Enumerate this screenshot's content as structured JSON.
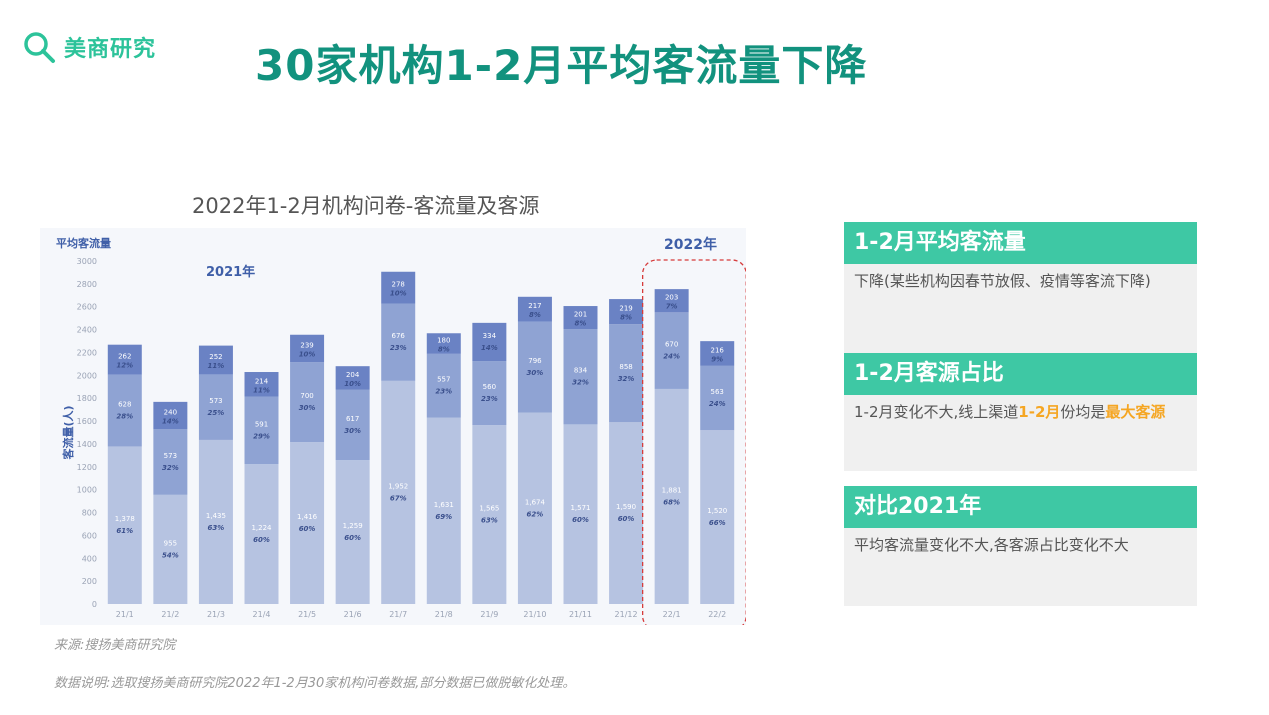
{
  "logo": {
    "text": "美商研究",
    "icon": "search-icon"
  },
  "page_title": "30家机构1-2月平均客流量下降",
  "chart_title": "2022年1-2月机构问卷-客流量及客源",
  "chart_data": {
    "type": "bar",
    "stacked": true,
    "inner_title": "平均客流量",
    "ylabel": "客流量(人)",
    "ylim": [
      0,
      3000
    ],
    "yticks": [
      0,
      200,
      400,
      600,
      800,
      1000,
      1200,
      1400,
      1600,
      1800,
      2000,
      2200,
      2400,
      2600,
      2800,
      3000
    ],
    "categories": [
      "21/1",
      "21/2",
      "21/3",
      "21/4",
      "21/5",
      "21/6",
      "21/7",
      "21/8",
      "21/9",
      "21/10",
      "21/11",
      "21/12",
      "22/1",
      "22/2"
    ],
    "series": [
      {
        "color": "#b6c3e1",
        "values": [
          1378,
          955,
          1435,
          1224,
          1416,
          1259,
          1952,
          1631,
          1565,
          1674,
          1571,
          1590,
          1881,
          1520
        ],
        "labels": [
          "1,378",
          "955",
          "1,435",
          "1,224",
          "1,416",
          "1,259",
          "1,952",
          "1,631",
          "1,565",
          "1,674",
          "1,571",
          "1,590",
          "1,881",
          "1,520"
        ],
        "pct": [
          "61%",
          "54%",
          "63%",
          "60%",
          "60%",
          "60%",
          "67%",
          "69%",
          "63%",
          "62%",
          "60%",
          "60%",
          "68%",
          "66%"
        ]
      },
      {
        "color": "#8fa3d3",
        "values": [
          628,
          573,
          573,
          591,
          700,
          617,
          676,
          557,
          560,
          796,
          834,
          858,
          670,
          563
        ],
        "labels": [
          "628",
          "573",
          "573",
          "591",
          "700",
          "617",
          "676",
          "557",
          "560",
          "796",
          "834",
          "858",
          "670",
          "563"
        ],
        "pct": [
          "28%",
          "32%",
          "25%",
          "29%",
          "30%",
          "30%",
          "23%",
          "23%",
          "23%",
          "30%",
          "32%",
          "32%",
          "24%",
          "24%"
        ]
      },
      {
        "color": "#6a82c4",
        "values": [
          262,
          240,
          252,
          214,
          239,
          204,
          278,
          180,
          334,
          217,
          201,
          219,
          203,
          216
        ],
        "labels": [
          "262",
          "240",
          "252",
          "214",
          "239",
          "204",
          "278",
          "180",
          "334",
          "217",
          "201",
          "219",
          "203",
          "216"
        ],
        "pct": [
          "12%",
          "14%",
          "11%",
          "11%",
          "10%",
          "10%",
          "10%",
          "8%",
          "14%",
          "8%",
          "8%",
          "8%",
          "7%",
          "9%"
        ]
      }
    ],
    "annotations": [
      {
        "text": "2021年",
        "color": "#3f5fa8"
      },
      {
        "text": "2022年",
        "color": "#3f5fa8",
        "highlight_categories": [
          "22/1",
          "22/2"
        ],
        "highlight_color": "#d63b3b"
      }
    ],
    "grid": false
  },
  "source": "来源:搜扬美商研究院",
  "note": "数据说明:选取搜扬美商研究院2022年1-2月30家机构问卷数据,部分数据已做脱敏化处理。",
  "cards": [
    {
      "title": "1-2月平均客流量",
      "body": "下降(某些机构因春节放假、疫情等客流下降)"
    },
    {
      "title": "1-2月客源占比",
      "body_a": "1-2月变化不大,线上渠道",
      "body_hl1": "1-2月",
      "body_b": "份均是",
      "body_hl2": "最大客源"
    },
    {
      "title": "对比2021年",
      "body": "平均客流量变化不大,各客源占比变化不大"
    }
  ]
}
